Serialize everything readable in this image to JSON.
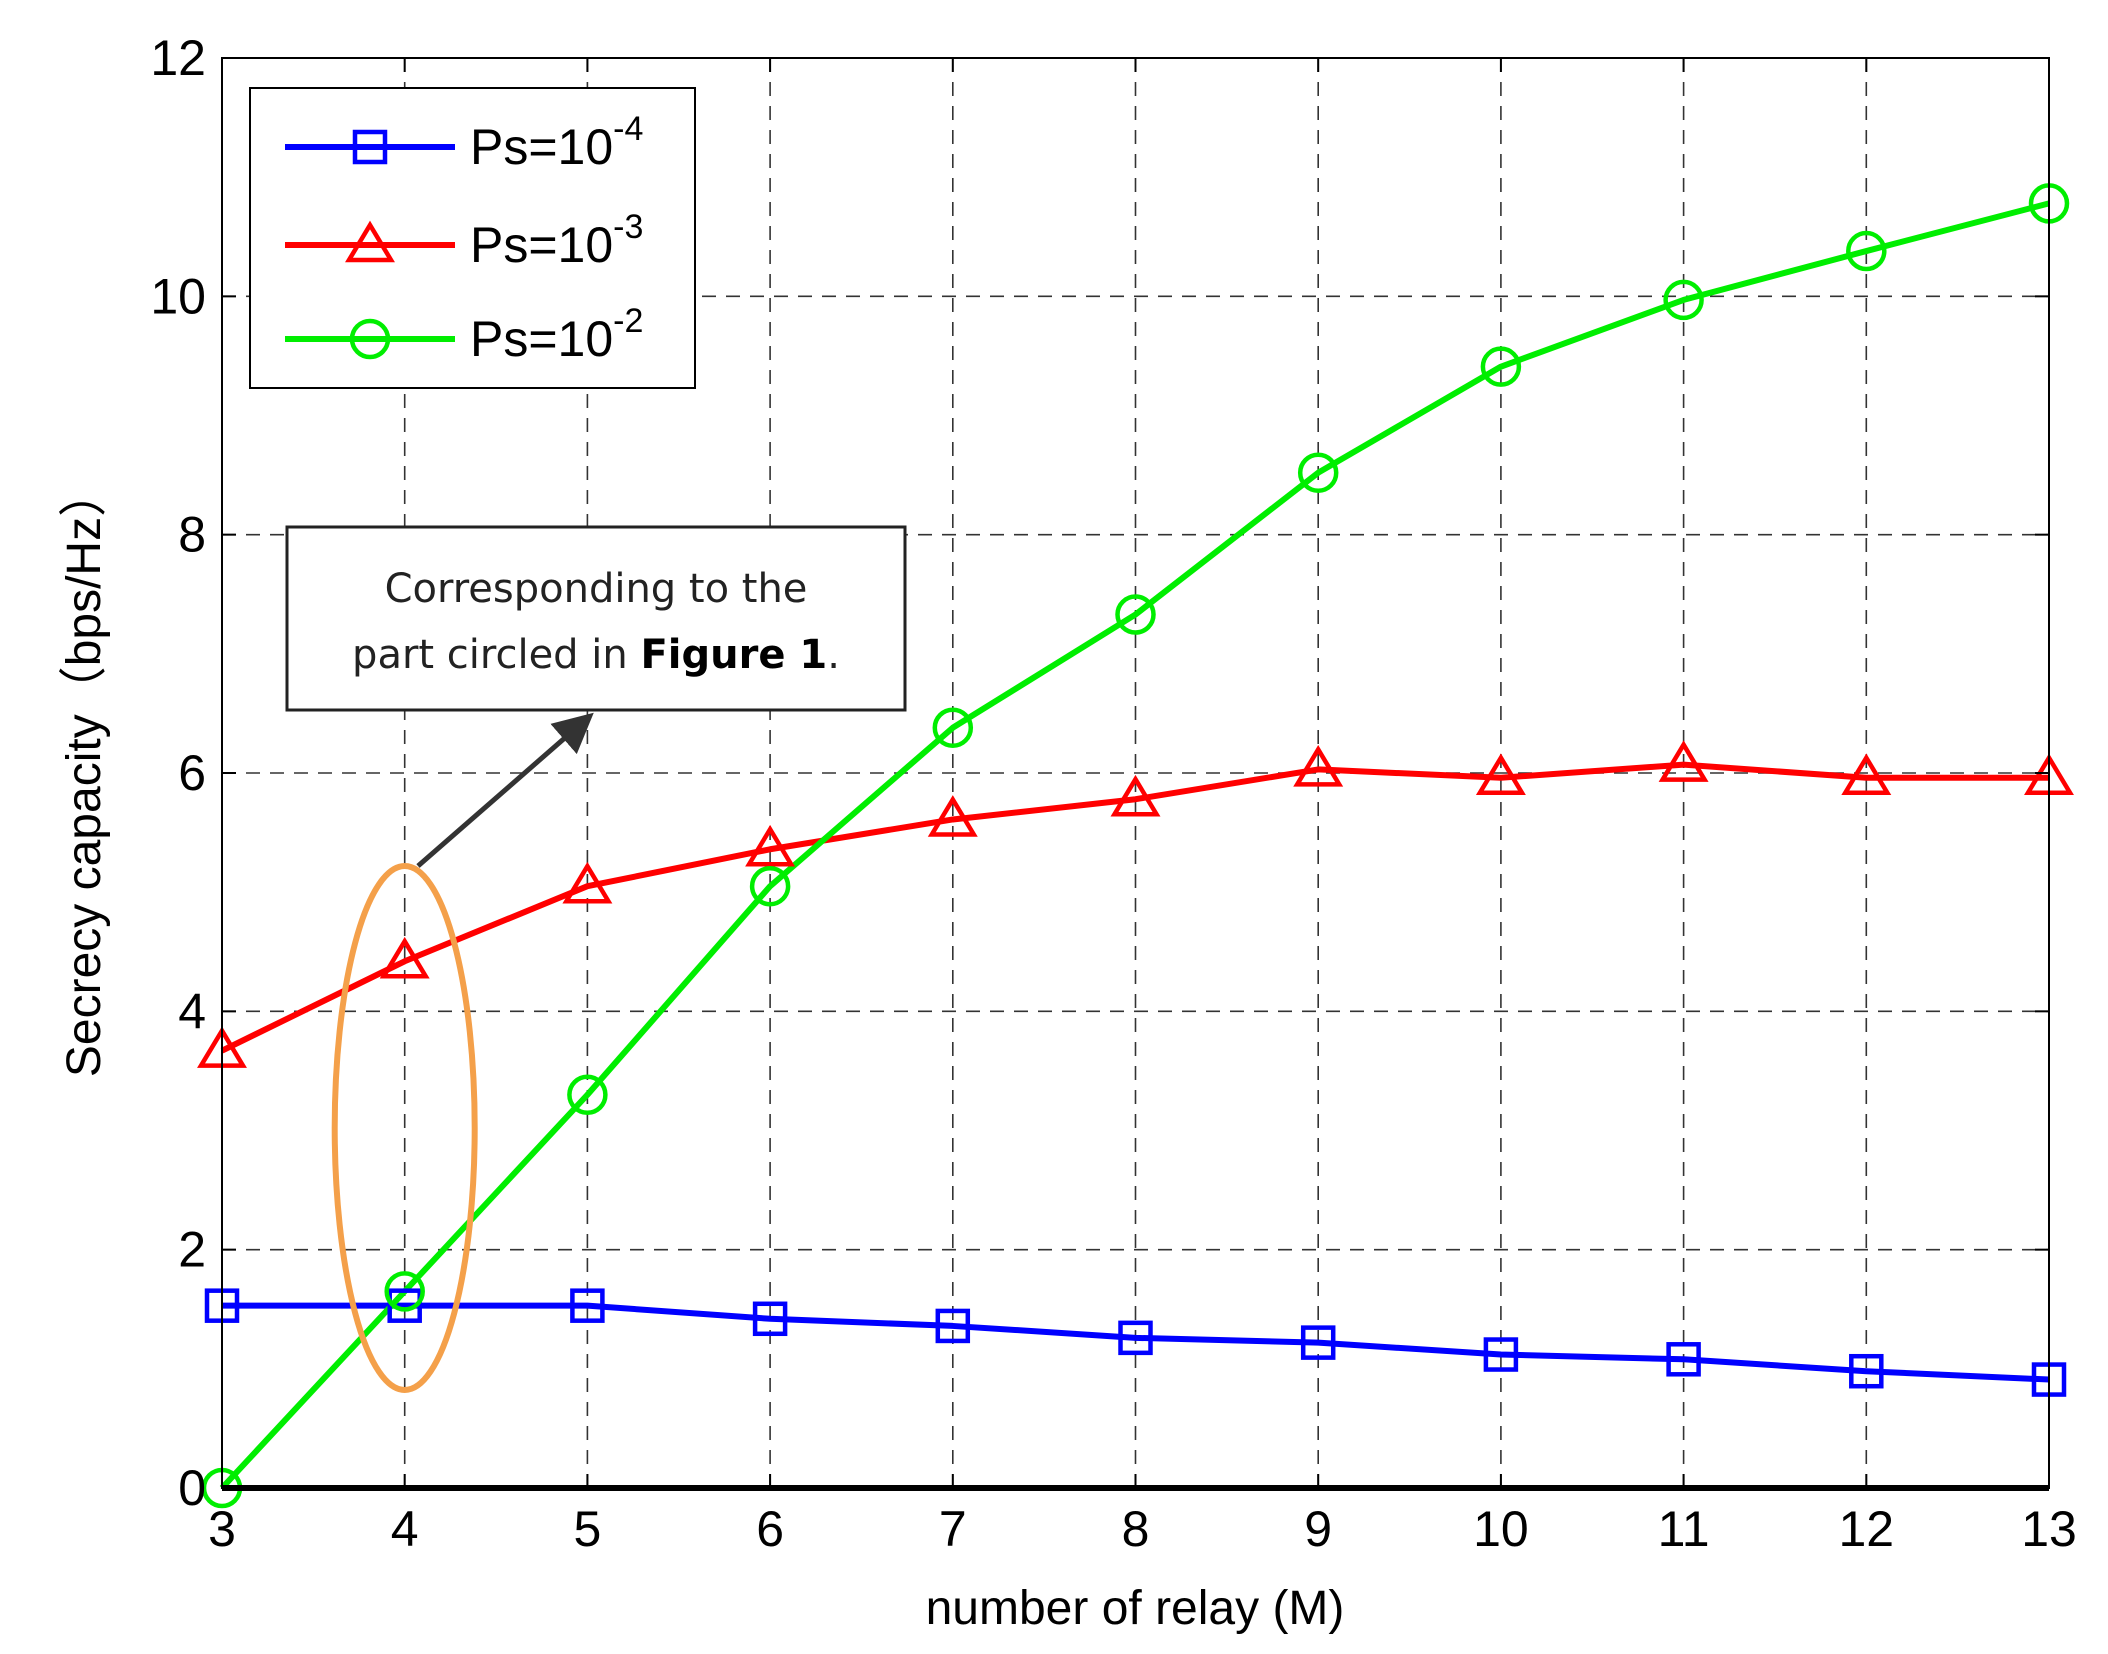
{
  "chart_data": {
    "type": "line",
    "title": "",
    "xlabel": "number of relay (M)",
    "ylabel": "Secrecy capacity（bps/Hz）",
    "xlim": [
      3,
      13
    ],
    "ylim": [
      0,
      12
    ],
    "x_ticks": [
      "3",
      "4",
      "5",
      "6",
      "7",
      "8",
      "9",
      "10",
      "11",
      "12",
      "13"
    ],
    "y_ticks": [
      "0",
      "2",
      "4",
      "6",
      "8",
      "10",
      "12"
    ],
    "grid": true,
    "legend_position": "top-left",
    "x": [
      3,
      4,
      5,
      6,
      7,
      8,
      9,
      10,
      11,
      12,
      13
    ],
    "series": [
      {
        "name": "Ps=10-4",
        "label_base": "Ps=10",
        "label_exp": "-4",
        "color": "#0000ff",
        "marker": "square",
        "values": [
          1.53,
          1.53,
          1.53,
          1.42,
          1.36,
          1.26,
          1.22,
          1.12,
          1.08,
          0.98,
          0.91
        ]
      },
      {
        "name": "Ps=10-3",
        "label_base": "Ps=10",
        "label_exp": "-3",
        "color": "#ff0000",
        "marker": "triangle",
        "values": [
          3.67,
          4.42,
          5.05,
          5.36,
          5.61,
          5.78,
          6.03,
          5.96,
          6.07,
          5.96,
          5.96
        ]
      },
      {
        "name": "Ps=10-2",
        "label_base": "Ps=10",
        "label_exp": "-2",
        "color": "#00ee00",
        "marker": "circle",
        "values": [
          0.0,
          1.65,
          3.3,
          5.05,
          6.38,
          7.33,
          8.52,
          9.41,
          9.97,
          10.38,
          10.78
        ]
      }
    ],
    "annotation": {
      "line1": "Corresponding to the",
      "line2_prefix": "part circled in ",
      "line2_bold": "Figure 1",
      "line2_suffix": ".",
      "ellipse_color": "#f4a04a",
      "highlighted_x": 4
    }
  }
}
